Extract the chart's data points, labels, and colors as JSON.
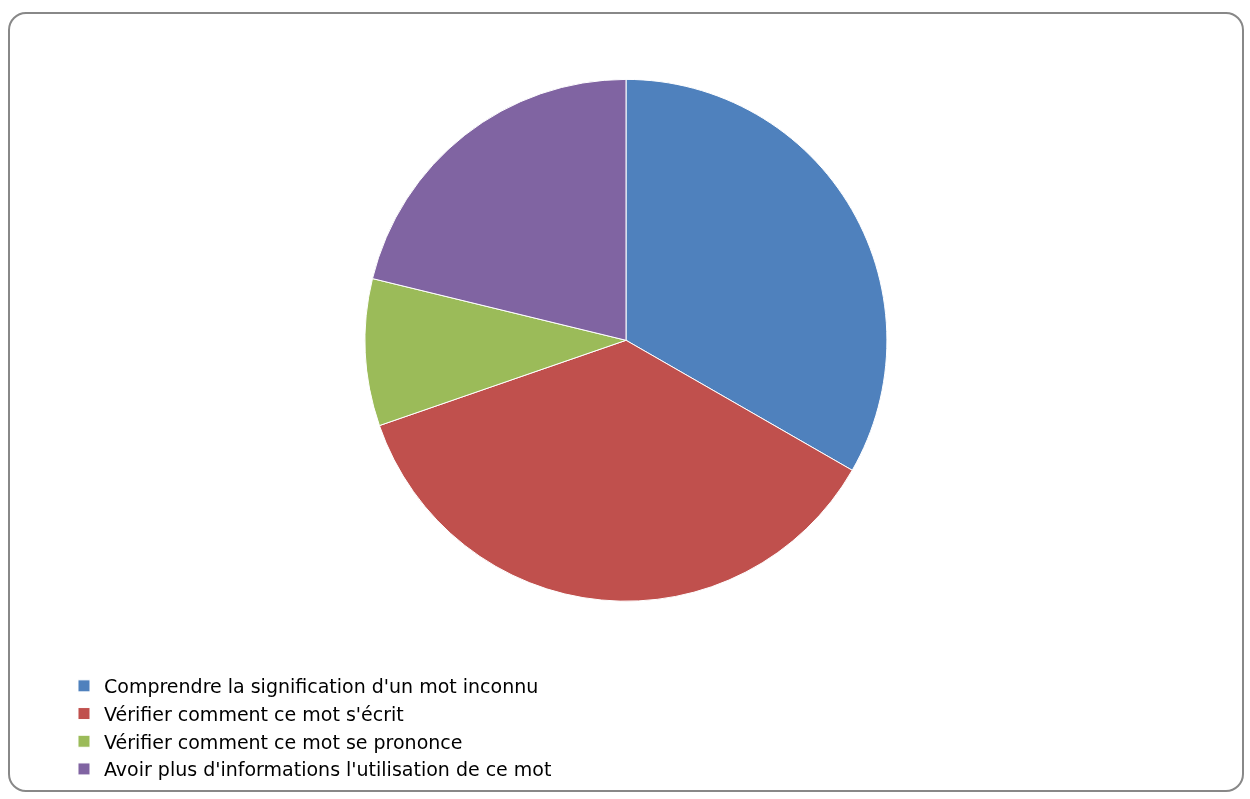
{
  "chart_data": {
    "type": "pie",
    "categories": [
      "Comprendre la signification d'un mot inconnu",
      "Vérifier comment ce mot s'écrit",
      "Vérifier comment ce mot se prononce",
      "Avoir plus d'informations l'utilisation de ce mot"
    ],
    "values": [
      33.3,
      36.4,
      9.1,
      21.2
    ],
    "colors": [
      "#4f81bd",
      "#c0504d",
      "#9bbb59",
      "#8064a2"
    ],
    "legend": "bottom"
  }
}
